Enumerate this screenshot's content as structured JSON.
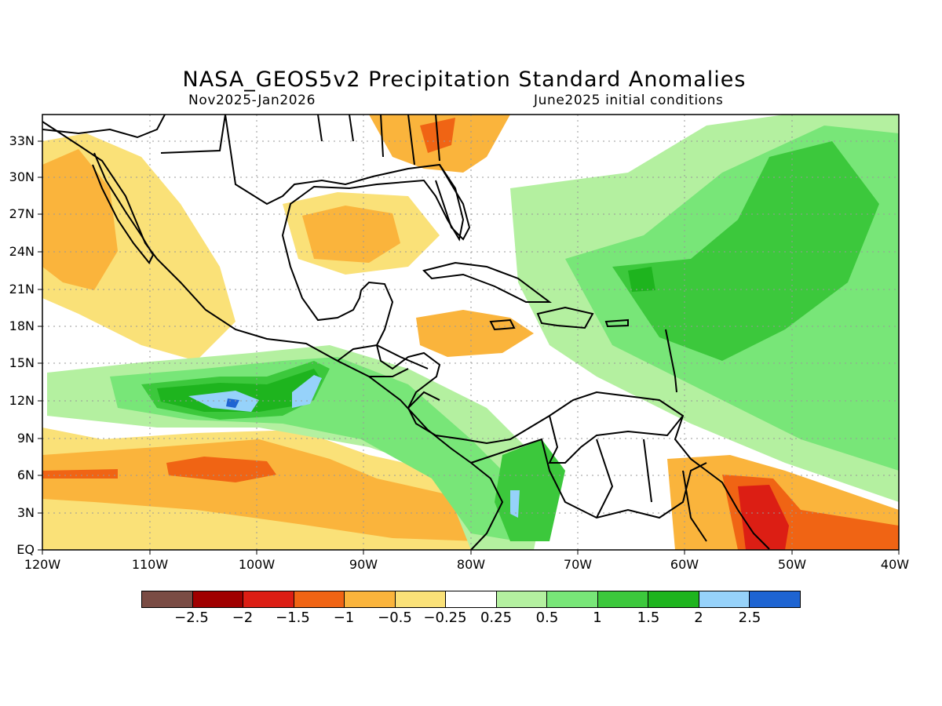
{
  "header": {
    "title": "NASA_GEOS5v2 Precipitation Standard Anomalies",
    "period": "Nov2025-Jan2026",
    "init": "June2025 initial conditions"
  },
  "axes": {
    "lat_labels": [
      "33N",
      "30N",
      "27N",
      "24N",
      "21N",
      "18N",
      "15N",
      "12N",
      "9N",
      "6N",
      "3N",
      "EQ"
    ],
    "lon_labels": [
      "120W",
      "110W",
      "100W",
      "90W",
      "80W",
      "70W",
      "60W",
      "50W",
      "40W"
    ]
  },
  "colorbar": {
    "colors": [
      "#7a4c44",
      "#a00000",
      "#dc1e14",
      "#f06414",
      "#fab43c",
      "#fae178",
      "#ffffff",
      "#b4f0a0",
      "#78e678",
      "#3cc83c",
      "#1eb41e",
      "#96d2fa",
      "#1e64d2"
    ],
    "labels": [
      "-2.5",
      "-2",
      "-1.5",
      "-1",
      "-0.5",
      "-0.25",
      "0.25",
      "0.5",
      "1",
      "1.5",
      "2",
      "2.5"
    ]
  },
  "palette": {
    "dry_light": "#fae178",
    "dry_mid": "#fab43c",
    "dry_strong": "#f06414",
    "dry_very": "#dc1e14",
    "wet_light": "#b4f0a0",
    "wet_mid": "#78e678",
    "wet_strong": "#3cc83c",
    "wet_very": "#1eb41e",
    "wet_extreme": "#96d2fa",
    "wet_max": "#1e64d2"
  }
}
